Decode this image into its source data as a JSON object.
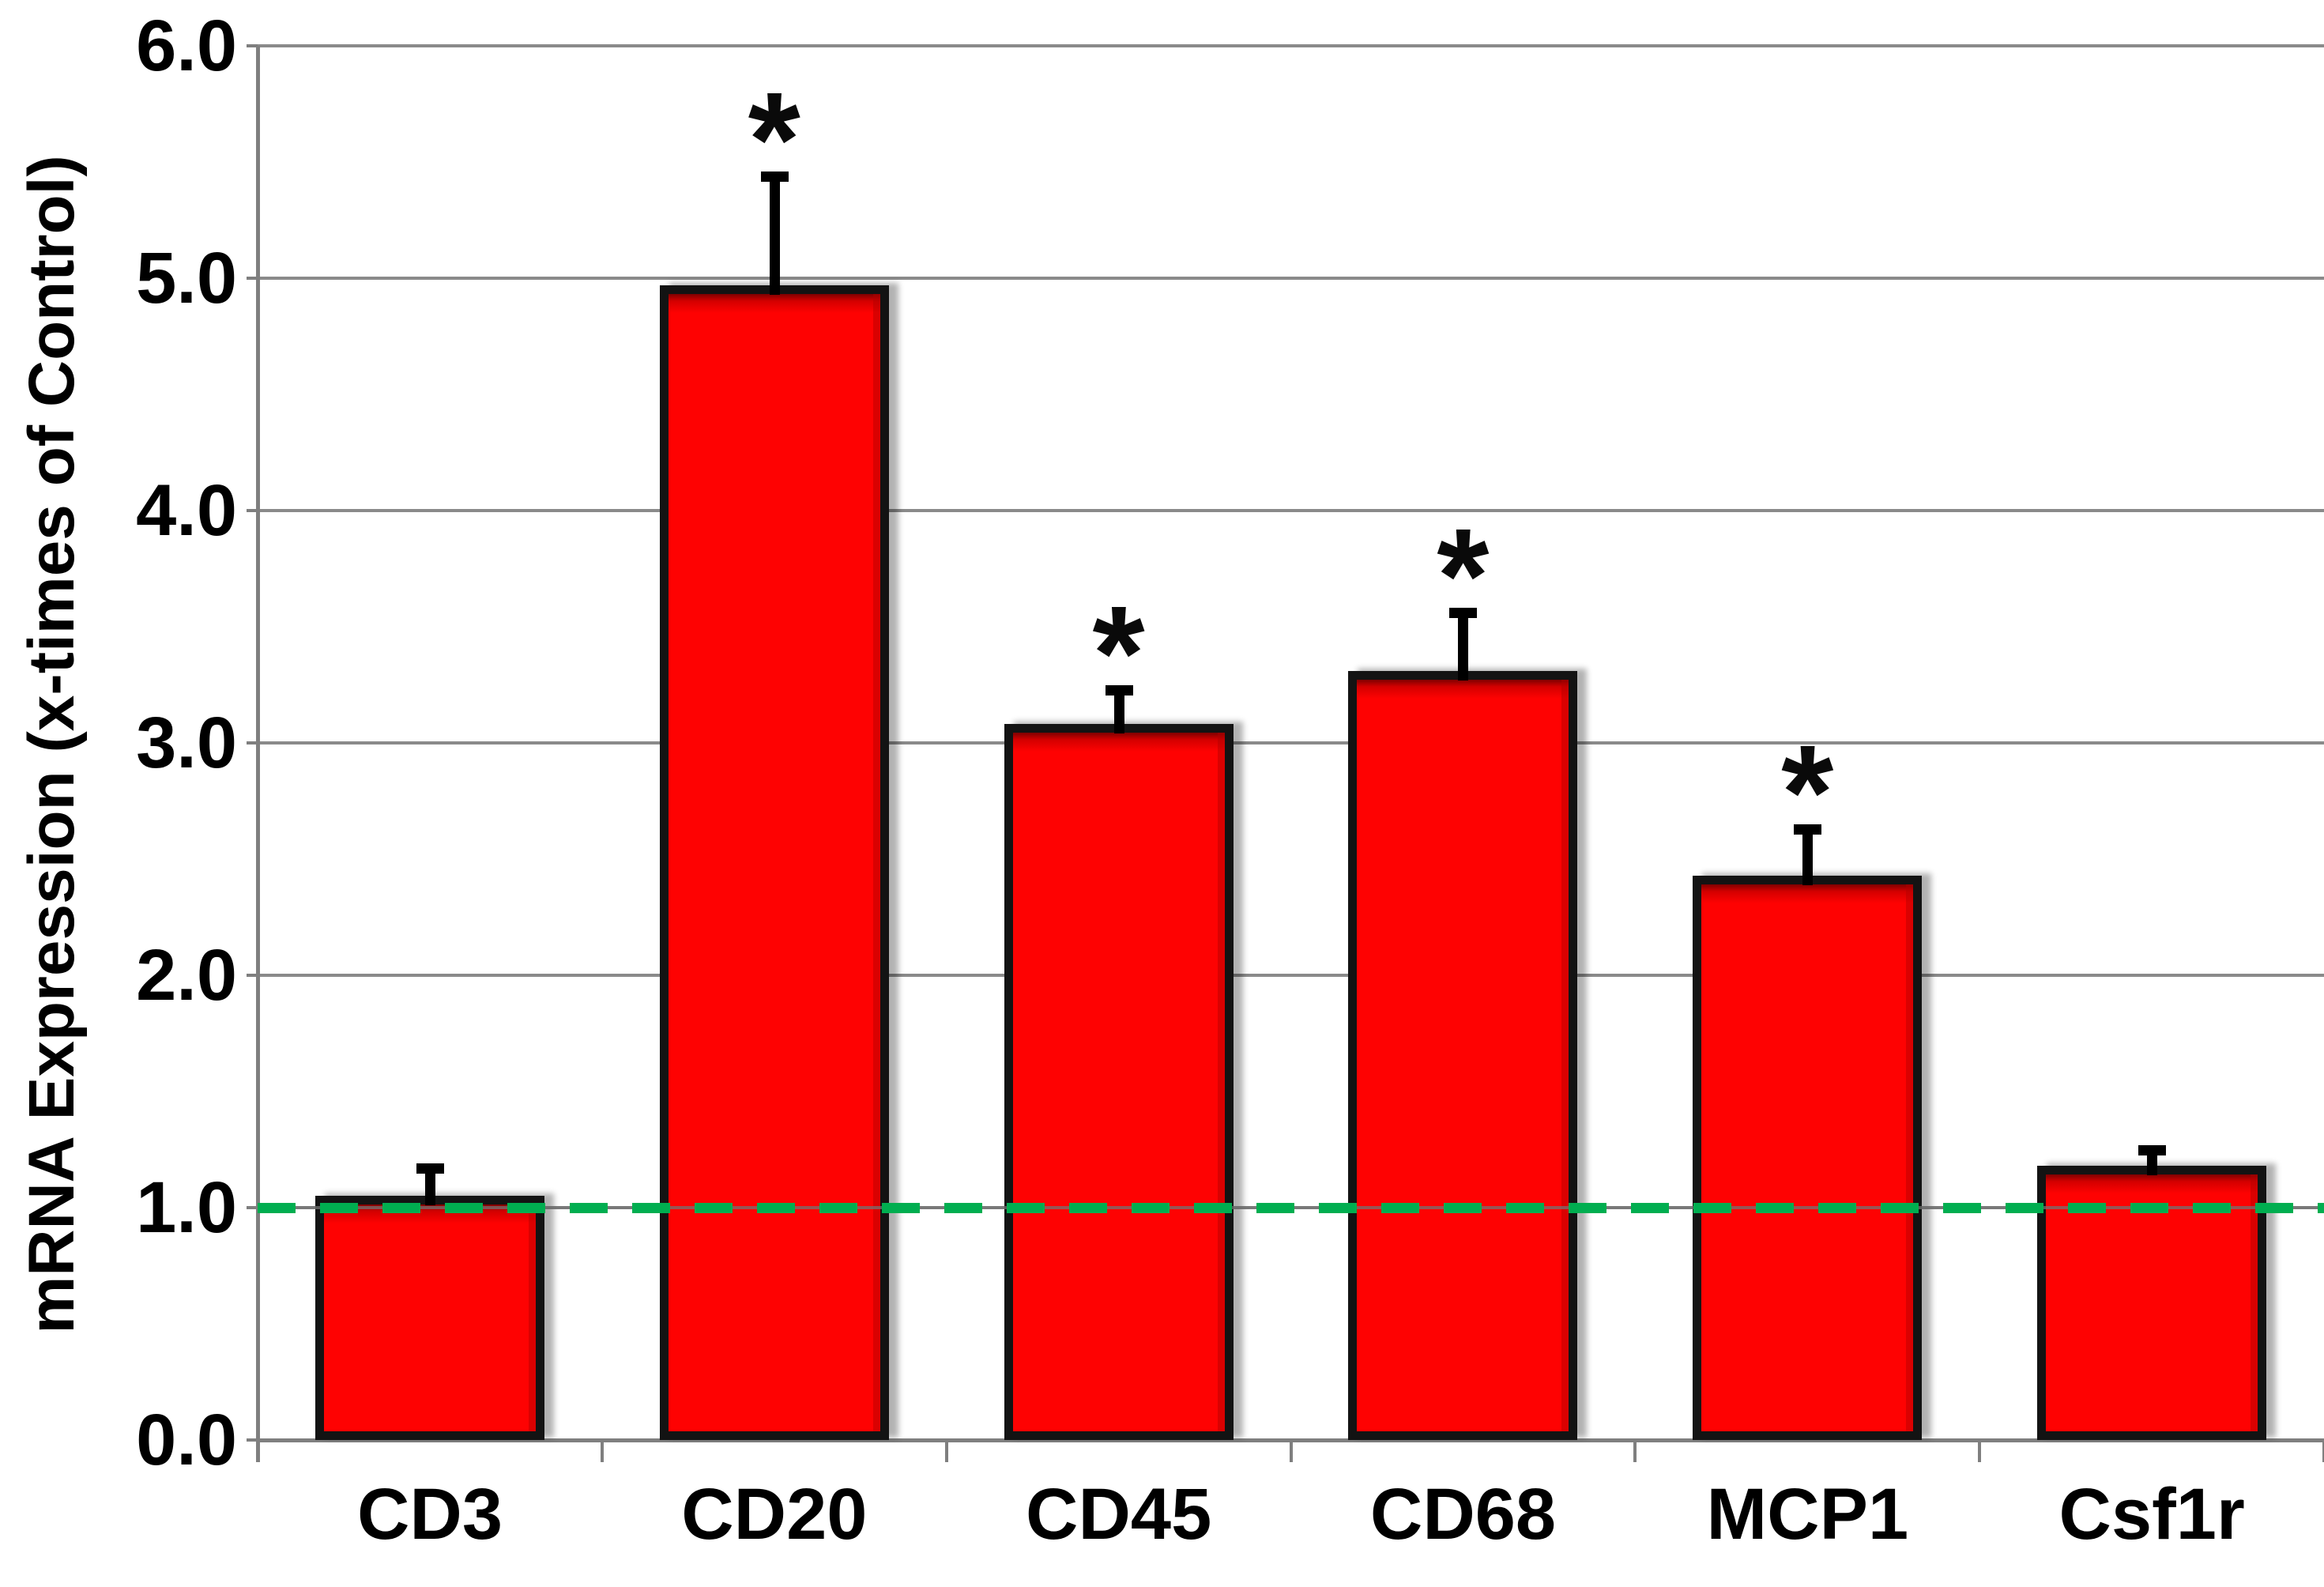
{
  "chart_data": {
    "type": "bar",
    "title": "",
    "xlabel": "",
    "ylabel": "mRNA Expression (x-times of Control)",
    "categories": [
      "CD3",
      "CD20",
      "CD45",
      "CD68",
      "MCP1",
      "Csf1r"
    ],
    "values": [
      1.05,
      4.97,
      3.08,
      3.31,
      2.43,
      1.18
    ],
    "errors_upper": [
      0.14,
      0.49,
      0.17,
      0.27,
      0.22,
      0.09
    ],
    "significant": [
      false,
      true,
      true,
      true,
      true,
      false
    ],
    "significance_marker": "*",
    "yticks": [
      "0.0",
      "1.0",
      "2.0",
      "3.0",
      "4.0",
      "5.0",
      "6.0"
    ],
    "ylim": [
      0,
      6
    ],
    "grid": true,
    "legend": null,
    "reference_line": {
      "value": 1.0,
      "style": "dashed",
      "color": "#00AE50"
    },
    "colors": {
      "bar_fill": "#FE0202",
      "bar_border": "#131313",
      "gridline": "#8A8A8A",
      "axis": "#7F7F7F",
      "reference": "#00AE50",
      "text": "#000000"
    }
  }
}
